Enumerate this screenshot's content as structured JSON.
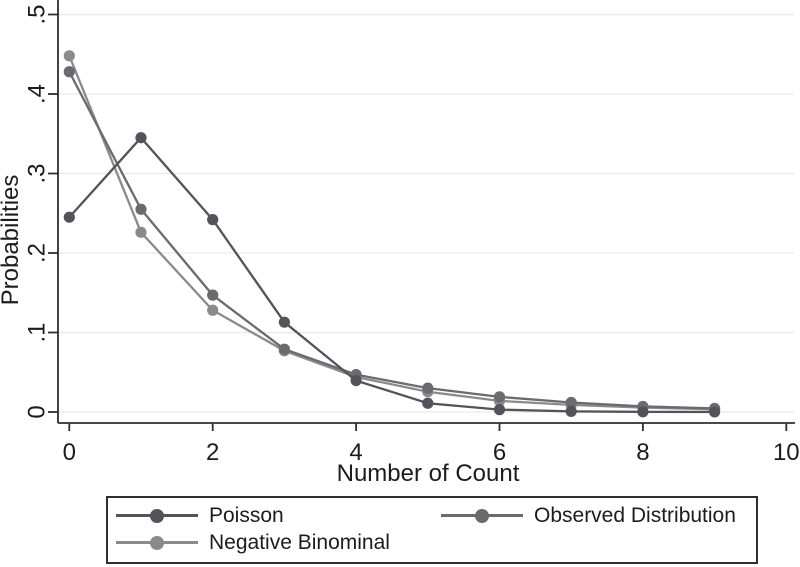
{
  "chart_data": {
    "type": "line",
    "title": "",
    "xlabel": "Number of Count",
    "ylabel": "Probabilities",
    "x": [
      0,
      1,
      2,
      3,
      4,
      5,
      6,
      7,
      8,
      9
    ],
    "xlim": [
      0,
      10
    ],
    "ylim": [
      0,
      0.5
    ],
    "x_tick_values": [
      0,
      2,
      4,
      6,
      8,
      10
    ],
    "x_tick_labels": [
      "0",
      "2",
      "4",
      "6",
      "8",
      "10"
    ],
    "y_tick_values": [
      0,
      0.1,
      0.2,
      0.3,
      0.4,
      0.5
    ],
    "y_tick_labels": [
      "0",
      ".1",
      ".2",
      ".3",
      ".4",
      ".5"
    ],
    "grid": "horizontal",
    "legend_position": "bottom-box",
    "marker": "circle",
    "series": [
      {
        "name": "Poisson",
        "color": "#53535a",
        "values": [
          0.245,
          0.345,
          0.242,
          0.113,
          0.0395,
          0.011,
          0.003,
          0.0008,
          0.0002,
          0.0001
        ]
      },
      {
        "name": "Observed Distribution",
        "color": "#6a6a6f",
        "values": [
          0.428,
          0.255,
          0.147,
          0.079,
          0.047,
          0.03,
          0.019,
          0.012,
          0.007,
          0.0045
        ]
      },
      {
        "name": "Negative Binominal",
        "color": "#8a8a8e",
        "values": [
          0.448,
          0.226,
          0.128,
          0.077,
          0.044,
          0.0255,
          0.014,
          0.009,
          0.0055,
          0.0035
        ]
      }
    ],
    "style": {
      "axis_color": "#2e2e2e",
      "grid_color": "#e9e9e9",
      "text_color": "#1c1c1c",
      "background": "#ffffff"
    }
  },
  "legend": {
    "items": [
      "Poisson",
      "Observed Distribution",
      "Negative Binominal"
    ]
  }
}
